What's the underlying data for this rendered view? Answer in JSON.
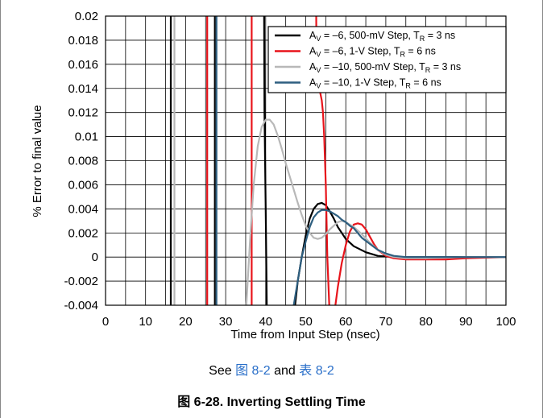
{
  "chart_data": {
    "type": "line",
    "xlabel": "Time from Input Step (nsec)",
    "ylabel": "% Error to final value",
    "xlim": [
      0,
      100
    ],
    "ylim": [
      -0.004,
      0.02
    ],
    "x_ticks": [
      0,
      10,
      20,
      30,
      40,
      50,
      60,
      70,
      80,
      90,
      100
    ],
    "y_ticks": [
      0.02,
      0.018,
      0.016,
      0.014,
      0.012,
      0.01,
      0.008,
      0.006,
      0.004,
      0.002,
      0,
      -0.002,
      -0.004
    ],
    "y_tick_labels": [
      "0.02",
      "0.018",
      "0.016",
      "0.014",
      "0.012",
      "0.01",
      "0.008",
      "0.006",
      "0.004",
      "0.002",
      "0",
      "-0.002",
      "-0.004"
    ],
    "grid": true,
    "legend_position": "top-right",
    "series": [
      {
        "legend_main": "A",
        "legend_sub": "V",
        "legend_mid": " = –6, 500-mV Step, T",
        "legend_sub2": "R",
        "legend_end": " = 3 ns",
        "color": "#000000",
        "points": [
          [
            16.3,
            0.021
          ],
          [
            16.3,
            -0.005
          ],
          [
            27.3,
            -0.005
          ],
          [
            27.3,
            0.021
          ],
          [
            39.6,
            0.021
          ],
          [
            39.7,
            0.012
          ],
          [
            40.0,
            0.004
          ],
          [
            40.3,
            -0.005
          ],
          [
            47.0,
            -0.005
          ],
          [
            48.0,
            -0.002
          ],
          [
            49.0,
            0.0
          ],
          [
            50.0,
            0.0018
          ],
          [
            51.0,
            0.0032
          ],
          [
            52.0,
            0.004
          ],
          [
            53.0,
            0.0044
          ],
          [
            54.0,
            0.0045
          ],
          [
            55.0,
            0.0043
          ],
          [
            56.0,
            0.0038
          ],
          [
            57.0,
            0.0032
          ],
          [
            58.0,
            0.0025
          ],
          [
            60.0,
            0.0015
          ],
          [
            62.0,
            0.0009
          ],
          [
            65.0,
            0.0004
          ],
          [
            68.0,
            0.0001
          ],
          [
            72.0,
            0.0
          ],
          [
            80.0,
            0.0
          ],
          [
            100.0,
            0.0
          ]
        ]
      },
      {
        "legend_main": "A",
        "legend_sub": "V",
        "legend_mid": " = –6, 1-V Step, T",
        "legend_sub2": "R",
        "legend_end": " = 6 ns",
        "color": "#e8141b",
        "points": [
          [
            25.4,
            0.021
          ],
          [
            25.4,
            -0.005
          ],
          [
            36.5,
            -0.005
          ],
          [
            36.5,
            0.021
          ],
          [
            52.6,
            0.021
          ],
          [
            52.7,
            0.016
          ],
          [
            53.4,
            0.014
          ],
          [
            54.0,
            0.013
          ],
          [
            54.3,
            0.012
          ],
          [
            54.6,
            0.01
          ],
          [
            55.0,
            0.006
          ],
          [
            55.4,
            0.0
          ],
          [
            56.0,
            -0.005
          ],
          [
            57.0,
            -0.005
          ],
          [
            58.0,
            -0.0025
          ],
          [
            59.0,
            -0.0005
          ],
          [
            60.0,
            0.001
          ],
          [
            61.0,
            0.0021
          ],
          [
            62.0,
            0.0027
          ],
          [
            63.0,
            0.0028
          ],
          [
            64.0,
            0.0027
          ],
          [
            65.0,
            0.0023
          ],
          [
            66.0,
            0.0017
          ],
          [
            67.0,
            0.0011
          ],
          [
            68.0,
            0.0006
          ],
          [
            70.0,
            0.0001
          ],
          [
            72.0,
            -0.0001
          ],
          [
            75.0,
            -0.0002
          ],
          [
            80.0,
            -0.0002
          ],
          [
            85.0,
            -0.0002
          ],
          [
            90.0,
            -0.0001
          ],
          [
            100.0,
            0.0
          ]
        ]
      },
      {
        "legend_main": "A",
        "legend_sub": "V",
        "legend_mid": " = –10, 500-mV Step, T",
        "legend_sub2": "R",
        "legend_end": " = 3 ns",
        "color": "#b8b8b8",
        "points": [
          [
            17.2,
            0.021
          ],
          [
            17.2,
            -0.005
          ],
          [
            35.0,
            -0.005
          ],
          [
            36.2,
            0.002
          ],
          [
            37.0,
            0.006
          ],
          [
            38.0,
            0.0092
          ],
          [
            39.0,
            0.0108
          ],
          [
            40.0,
            0.0114
          ],
          [
            41.0,
            0.0114
          ],
          [
            42.0,
            0.011
          ],
          [
            43.0,
            0.0101
          ],
          [
            44.0,
            0.009
          ],
          [
            45.0,
            0.0078
          ],
          [
            46.0,
            0.0067
          ],
          [
            47.0,
            0.0056
          ],
          [
            48.0,
            0.0045
          ],
          [
            49.0,
            0.0035
          ],
          [
            50.0,
            0.0026
          ],
          [
            51.0,
            0.002
          ],
          [
            52.0,
            0.0016
          ],
          [
            53.0,
            0.0015
          ],
          [
            54.0,
            0.0016
          ],
          [
            55.0,
            0.0019
          ],
          [
            56.0,
            0.0023
          ],
          [
            57.0,
            0.0026
          ],
          [
            58.0,
            0.0029
          ],
          [
            59.0,
            0.003
          ],
          [
            60.0,
            0.0029
          ],
          [
            62.0,
            0.0025
          ],
          [
            64.0,
            0.0019
          ],
          [
            66.0,
            0.0012
          ],
          [
            68.0,
            0.0006
          ],
          [
            70.0,
            0.0002
          ],
          [
            72.0,
            0.0
          ],
          [
            75.0,
            -0.0001
          ],
          [
            80.0,
            -0.0001
          ],
          [
            90.0,
            0.0
          ],
          [
            100.0,
            0.0
          ]
        ]
      },
      {
        "legend_main": "A",
        "legend_sub": "V",
        "legend_mid": " = –10, 1-V Step, T",
        "legend_sub2": "R",
        "legend_end": " = 6 ns",
        "color": "#2e5f80",
        "points": [
          [
            27.7,
            0.021
          ],
          [
            27.7,
            -0.005
          ],
          [
            46.5,
            -0.005
          ],
          [
            48.0,
            -0.002
          ],
          [
            49.0,
            0.0
          ],
          [
            50.0,
            0.0013
          ],
          [
            51.0,
            0.0025
          ],
          [
            52.0,
            0.0033
          ],
          [
            53.0,
            0.0037
          ],
          [
            54.0,
            0.0039
          ],
          [
            55.0,
            0.0039
          ],
          [
            56.0,
            0.0038
          ],
          [
            57.0,
            0.0036
          ],
          [
            58.0,
            0.0034
          ],
          [
            59.0,
            0.0031
          ],
          [
            60.0,
            0.0029
          ],
          [
            61.0,
            0.0026
          ],
          [
            62.0,
            0.0024
          ],
          [
            63.0,
            0.002
          ],
          [
            64.0,
            0.0016
          ],
          [
            66.0,
            0.0011
          ],
          [
            68.0,
            0.0006
          ],
          [
            70.0,
            0.0003
          ],
          [
            72.0,
            0.0001
          ],
          [
            75.0,
            0.0
          ],
          [
            100.0,
            0.0
          ]
        ]
      }
    ]
  },
  "caption_ref": {
    "prefix": "See ",
    "link1": "图 8-2",
    "middle": " and ",
    "link2": "表 8-2"
  },
  "figure_caption": "图 6-28. Inverting Settling Time"
}
